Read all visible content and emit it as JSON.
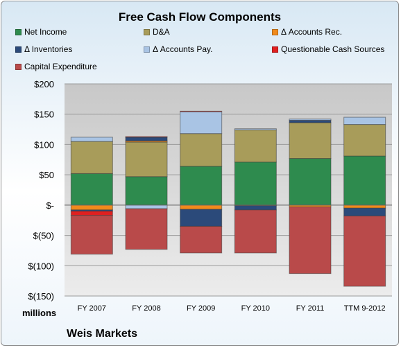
{
  "chart_data": {
    "type": "bar",
    "stacked": true,
    "title": "Free Cash Flow Components",
    "unit_label": "millions",
    "source_label": "Weis Markets",
    "categories": [
      "FY 2007",
      "FY 2008",
      "FY 2009",
      "FY 2010",
      "FY 2011",
      "TTM 9-2012"
    ],
    "ylim": [
      -150,
      200
    ],
    "yticks": [
      200,
      150,
      100,
      50,
      0,
      -50,
      -100,
      -150
    ],
    "ytick_labels": [
      "$200",
      "$150",
      "$100",
      "$50",
      "$-",
      "$(50)",
      "$(100)",
      "$(150)"
    ],
    "grid": true,
    "legend_position": "top",
    "series": [
      {
        "name": "Net Income",
        "color": "#2e8b4e",
        "values": [
          52,
          47,
          64,
          71,
          77,
          81
        ]
      },
      {
        "name": "D&A",
        "color": "#a89c5a",
        "values": [
          53,
          57,
          54,
          53,
          59,
          52
        ]
      },
      {
        "name": "Δ Accounts Rec.",
        "color": "#f08a1c",
        "values": [
          -8,
          2,
          -7,
          -1,
          -3,
          -5
        ]
      },
      {
        "name": "Δ Inventories",
        "color": "#2b4a7a",
        "values": [
          -2,
          6,
          -28,
          -7,
          4,
          -13
        ]
      },
      {
        "name": "Δ Accounts Pay.",
        "color": "#a9c4e4",
        "values": [
          7,
          -6,
          36,
          2,
          2,
          12
        ]
      },
      {
        "name": "Questionable Cash Sources",
        "color": "#e02020",
        "values": [
          -7,
          1,
          1,
          0,
          0,
          0
        ]
      },
      {
        "name": "Capital Expenditure",
        "color": "#b94a4a",
        "values": [
          -64,
          -67,
          -44,
          -71,
          -110,
          -116
        ]
      }
    ]
  }
}
